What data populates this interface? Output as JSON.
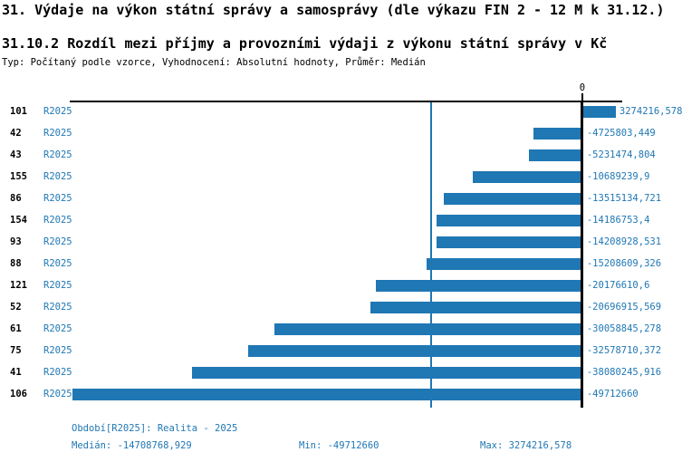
{
  "header": {
    "title": "31. Výdaje na výkon státní správy a samosprávy (dle výkazu FIN 2 - 12 M k 31.12.)",
    "subtitle": "31.10.2 Rozdíl mezi příjmy a provozními výdaji z výkonu státní správy v Kč",
    "meta": "Typ: Počítaný podle vzorce, Vyhodnocení: Absolutní hodnoty, Průměr: Medián"
  },
  "chart_data": {
    "type": "bar",
    "orientation": "horizontal",
    "zero_tick_label": "0",
    "xlim": [
      -50000000,
      3900000
    ],
    "median_value": -14708768.929,
    "grid": false,
    "colors": {
      "bar": "#1f77b4",
      "blue_text": "#1f77b4",
      "median_line": "#1f77b4",
      "axis": "#000000"
    },
    "rows": [
      {
        "id": "101",
        "period": "R2025",
        "value": 3274216.578,
        "label": "3274216,578"
      },
      {
        "id": "42",
        "period": "R2025",
        "value": -4725803.449,
        "label": "-4725803,449"
      },
      {
        "id": "43",
        "period": "R2025",
        "value": -5231474.804,
        "label": "-5231474,804"
      },
      {
        "id": "155",
        "period": "R2025",
        "value": -10689239.9,
        "label": "-10689239,9"
      },
      {
        "id": "86",
        "period": "R2025",
        "value": -13515134.721,
        "label": "-13515134,721"
      },
      {
        "id": "154",
        "period": "R2025",
        "value": -14186753.4,
        "label": "-14186753,4"
      },
      {
        "id": "93",
        "period": "R2025",
        "value": -14208928.531,
        "label": "-14208928,531"
      },
      {
        "id": "88",
        "period": "R2025",
        "value": -15208609.326,
        "label": "-15208609,326"
      },
      {
        "id": "121",
        "period": "R2025",
        "value": -20176610.6,
        "label": "-20176610,6"
      },
      {
        "id": "52",
        "period": "R2025",
        "value": -20696915.569,
        "label": "-20696915,569"
      },
      {
        "id": "61",
        "period": "R2025",
        "value": -30058845.278,
        "label": "-30058845,278"
      },
      {
        "id": "75",
        "period": "R2025",
        "value": -32578710.372,
        "label": "-32578710,372"
      },
      {
        "id": "41",
        "period": "R2025",
        "value": -38080245.916,
        "label": "-38080245,916"
      },
      {
        "id": "106",
        "period": "R2025",
        "value": -49712660,
        "label": "-49712660"
      }
    ]
  },
  "footer": {
    "period_line": "Období[R2025]: Realita - 2025",
    "median": "Medián: -14708768,929",
    "min": "Min: -49712660",
    "max": "Max: 3274216,578"
  }
}
